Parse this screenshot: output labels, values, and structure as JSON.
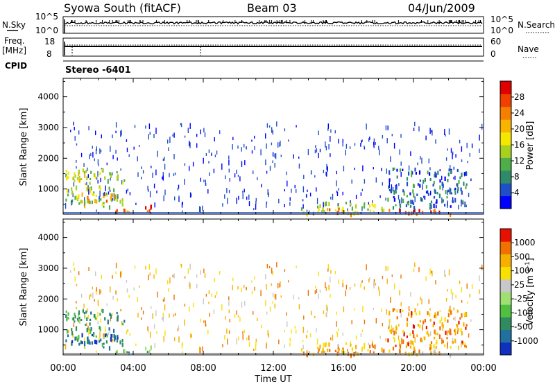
{
  "header": {
    "station": "Syowa South (fitACF)",
    "beam": "Beam 03",
    "date": "04/Jun/2009"
  },
  "top_panels": {
    "nsky_label": "N.Sky",
    "nsky_top": "10^5",
    "nsky_bottom": "10^0",
    "nsearch_label": "N.Search",
    "nsearch_top": "10^5",
    "nsearch_bottom": "10^0",
    "freq_label_1": "Freq.",
    "freq_label_2": "[MHz]",
    "freq_top": "18",
    "freq_bottom": "8",
    "nave_label": "Nave",
    "nave_top": "60",
    "nave_bottom": "0",
    "cpid_label": "CPID",
    "cpid_value": "Stereo  -6401"
  },
  "chart_data": [
    {
      "type": "heatmap",
      "panel": "power",
      "ylabel": "Slant Range [km]",
      "xlabel": "",
      "ylim": [
        180,
        4600
      ],
      "yticks": [
        "1000",
        "2000",
        "3000",
        "4000"
      ],
      "xlim_hours": [
        0,
        24
      ],
      "xticks": [
        "00:00",
        "04:00",
        "08:00",
        "12:00",
        "16:00",
        "20:00",
        "00:00"
      ],
      "colorbar": {
        "label": "Power [dB]",
        "ticks": [
          "4",
          "8",
          "12",
          "16",
          "20",
          "24",
          "28"
        ],
        "colors": [
          "#0000ff",
          "#1f4fc8",
          "#2f8a6a",
          "#4fae4a",
          "#a8d020",
          "#f5e800",
          "#f8b400",
          "#f57f00",
          "#f04000",
          "#e00000"
        ]
      },
      "regions": [
        {
          "t0": 0.1,
          "t1": 3.5,
          "r0": 450,
          "r1": 1700,
          "level": 0.45
        },
        {
          "t0": 1.0,
          "t1": 3.0,
          "r0": 600,
          "r1": 900,
          "level": 0.75
        },
        {
          "t0": 2.8,
          "t1": 5.0,
          "r0": 250,
          "r1": 500,
          "level": 0.8
        },
        {
          "t0": 13.5,
          "t1": 18.5,
          "r0": 250,
          "r1": 600,
          "level": 0.45
        },
        {
          "t0": 14.5,
          "t1": 17.0,
          "r0": 230,
          "r1": 400,
          "level": 0.7
        },
        {
          "t0": 18.5,
          "t1": 22.5,
          "r0": 230,
          "r1": 420,
          "level": 0.85
        },
        {
          "t0": 18.5,
          "t1": 23.0,
          "r0": 420,
          "r1": 1700,
          "level": 0.2
        }
      ]
    },
    {
      "type": "heatmap",
      "panel": "velocity",
      "ylabel": "Slant Range [km]",
      "xlabel": "Time UT",
      "ylim": [
        180,
        4600
      ],
      "yticks": [
        "1000",
        "2000",
        "3000",
        "4000"
      ],
      "xlim_hours": [
        0,
        24
      ],
      "xticks": [
        "00:00",
        "04:00",
        "08:00",
        "12:00",
        "16:00",
        "20:00",
        "00:00"
      ],
      "colorbar": {
        "label": "Velocity [m s^-1]",
        "ticks": [
          "1000",
          "500",
          "100",
          "25",
          "-25",
          "-100",
          "-500",
          "-1000"
        ],
        "colors": [
          "#1030c0",
          "#2070a0",
          "#308c60",
          "#50c040",
          "#a0e070",
          "#c8c8c8",
          "#f8e000",
          "#f8b000",
          "#f07000",
          "#e81000"
        ]
      },
      "regions": [
        {
          "t0": 0.1,
          "t1": 3.5,
          "r0": 450,
          "r1": 1700,
          "level": 0.25
        },
        {
          "t0": 1.0,
          "t1": 3.0,
          "r0": 600,
          "r1": 900,
          "level": 0.15
        },
        {
          "t0": 2.8,
          "t1": 5.0,
          "r0": 250,
          "r1": 500,
          "level": 0.35
        },
        {
          "t0": 13.5,
          "t1": 18.5,
          "r0": 250,
          "r1": 600,
          "level": 0.75
        },
        {
          "t0": 14.5,
          "t1": 17.0,
          "r0": 230,
          "r1": 400,
          "level": 0.72
        },
        {
          "t0": 18.5,
          "t1": 22.5,
          "r0": 230,
          "r1": 420,
          "level": 0.7
        },
        {
          "t0": 18.5,
          "t1": 23.0,
          "r0": 420,
          "r1": 1700,
          "level": 0.78
        }
      ]
    }
  ]
}
